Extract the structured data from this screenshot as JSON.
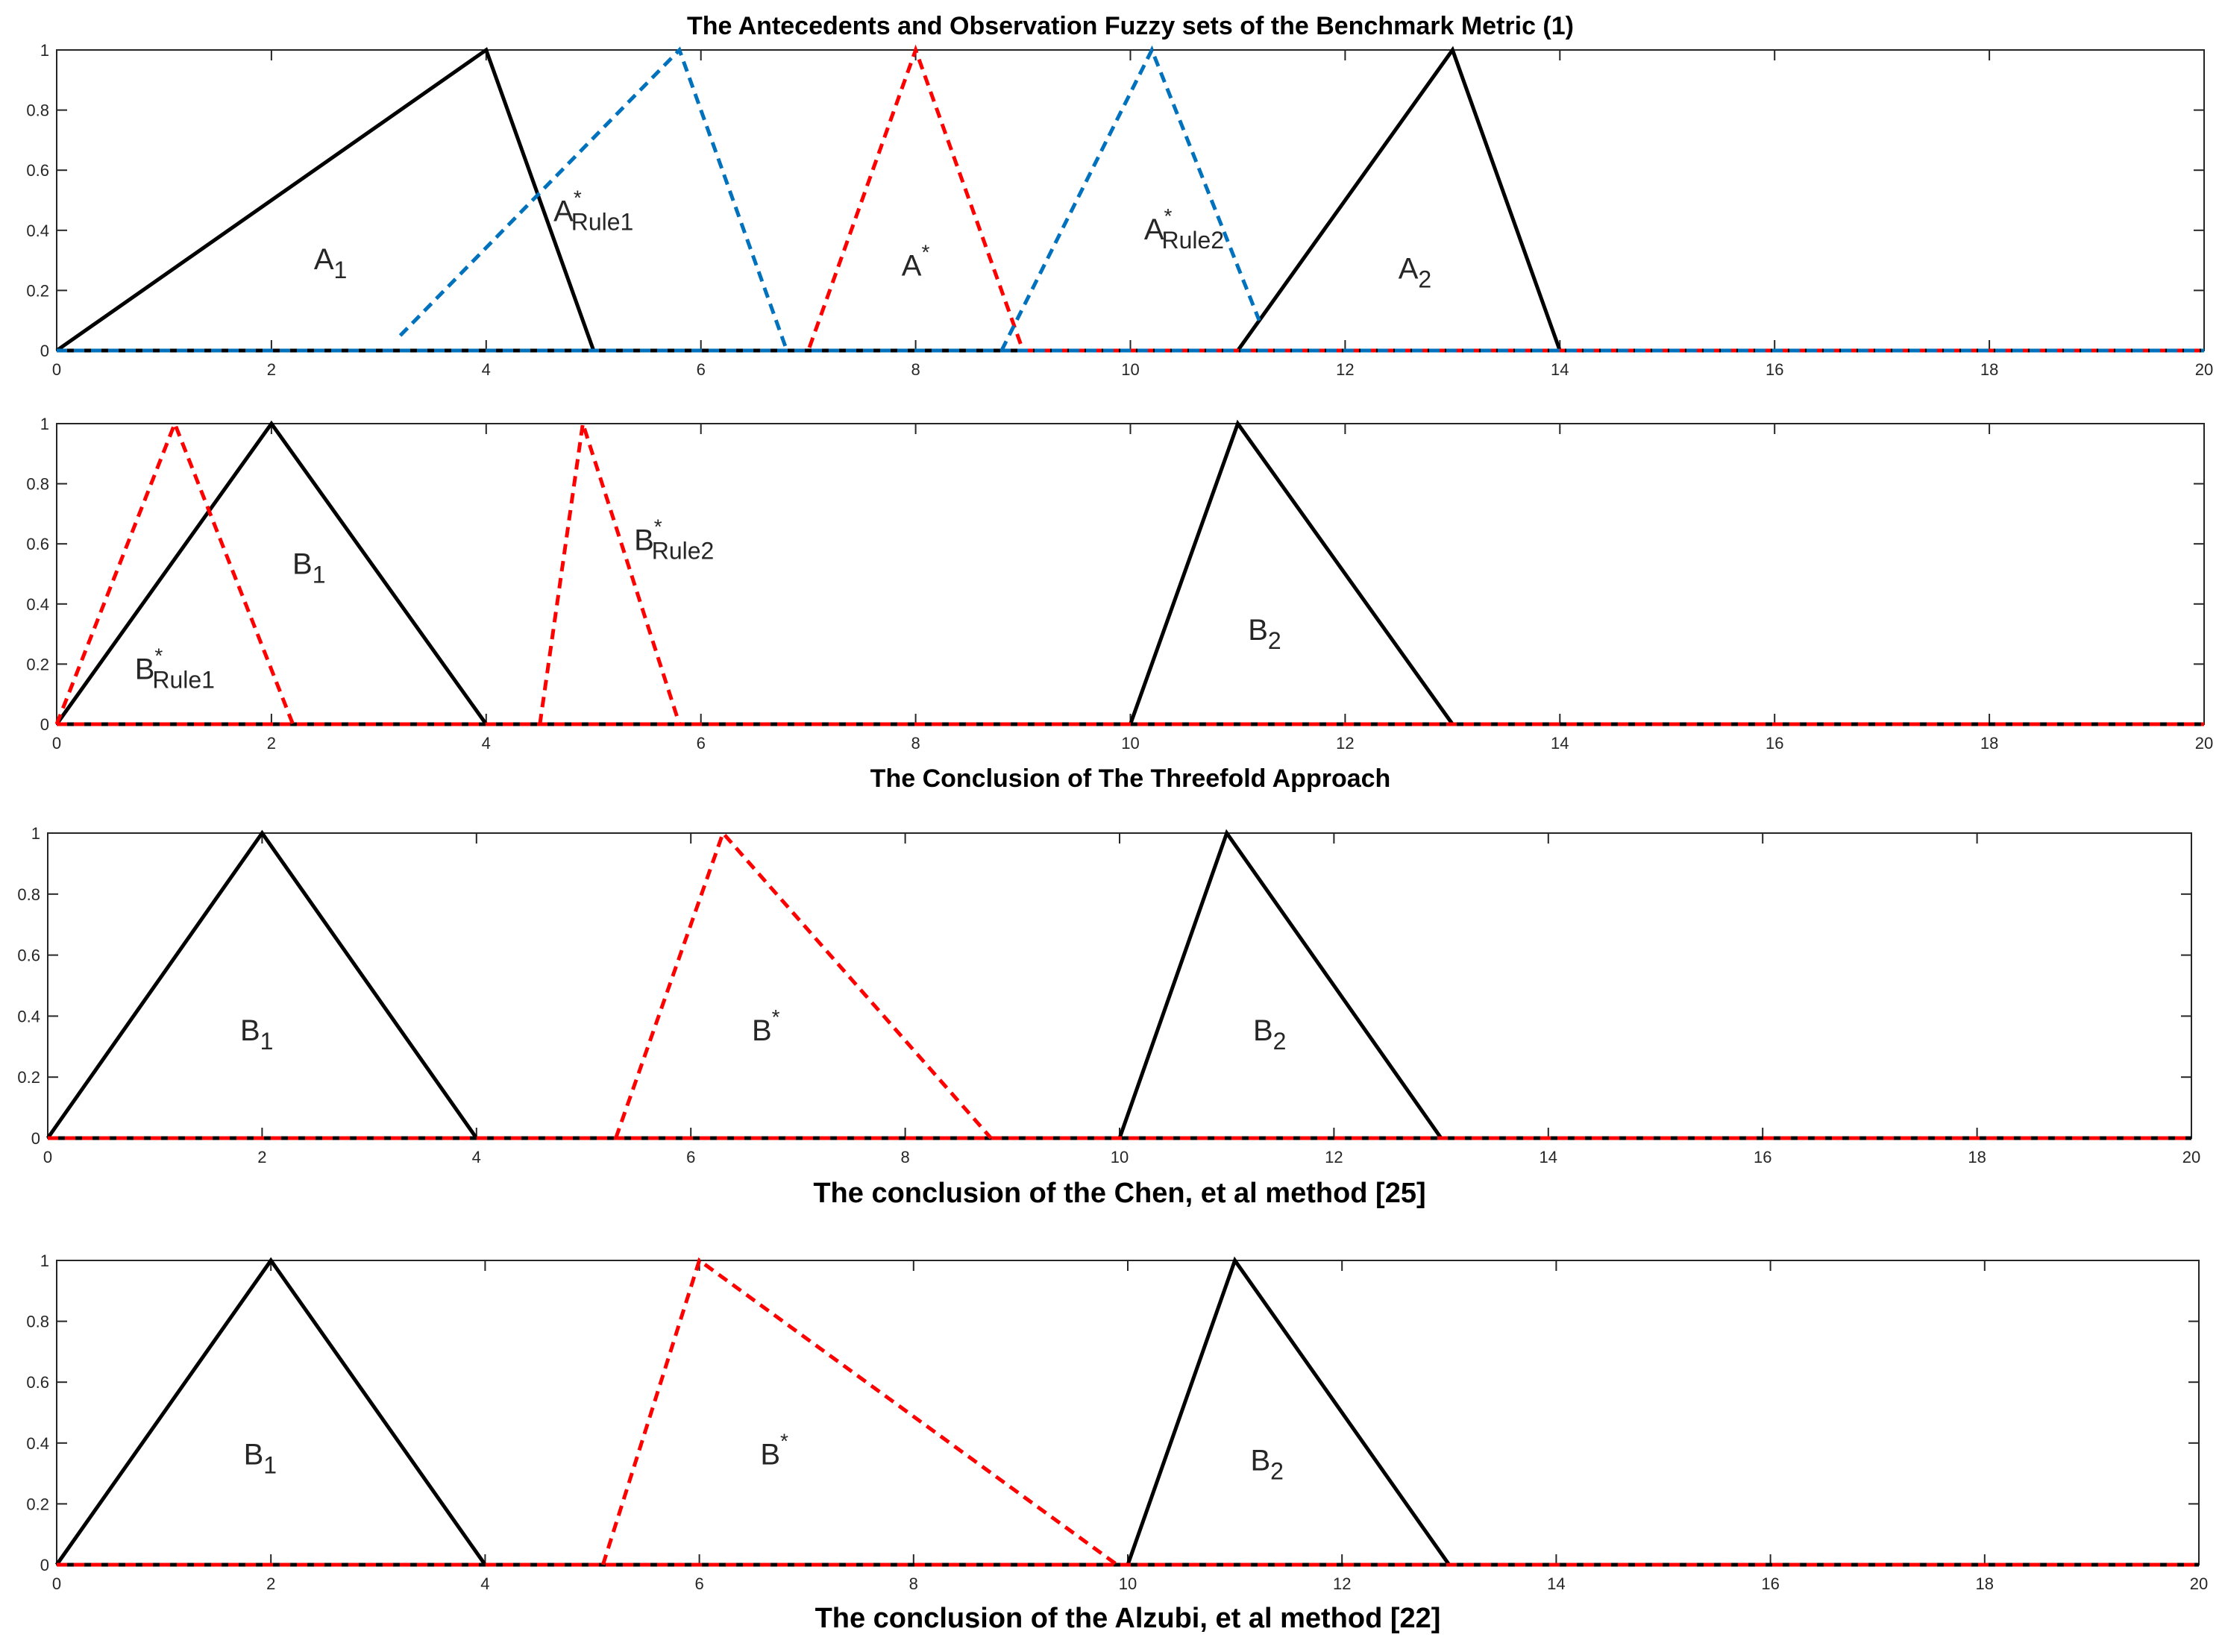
{
  "colors": {
    "black": "#000000",
    "red": "#ff0000",
    "blue": "#0072bd",
    "axis": "#262626",
    "label": "#262626"
  },
  "chart_data": [
    {
      "type": "line",
      "title": "The Antecedents and Observation Fuzzy sets of the Benchmark Metric (1)",
      "xlim": [
        0,
        20
      ],
      "ylim": [
        0,
        1
      ],
      "xticks": [
        0,
        2,
        4,
        6,
        8,
        10,
        12,
        14,
        16,
        18,
        20
      ],
      "yticks": [
        0,
        0.2,
        0.4,
        0.6,
        0.8,
        1
      ],
      "grid": false,
      "series": [
        {
          "color": "black",
          "style": "solid",
          "x": [
            0,
            4,
            5,
            20
          ],
          "y": [
            0,
            1,
            0,
            0
          ]
        },
        {
          "color": "black",
          "style": "solid",
          "x": [
            0,
            11,
            13,
            14,
            20
          ],
          "y": [
            0,
            0,
            1,
            0,
            0
          ]
        },
        {
          "color": "red",
          "style": "dashed",
          "x": [
            0,
            7,
            8,
            9,
            20
          ],
          "y": [
            0,
            0,
            1,
            0,
            0
          ]
        },
        {
          "color": "blue",
          "style": "dashed",
          "x": [
            3.2,
            5.8,
            6.8
          ],
          "y": [
            0.05,
            1,
            0
          ]
        },
        {
          "color": "blue",
          "style": "dashed",
          "x": [
            8.8,
            10.2,
            11.2
          ],
          "y": [
            0,
            1,
            0.1
          ]
        },
        {
          "color": "blue",
          "style": "dashed",
          "x": [
            0,
            20
          ],
          "y": [
            0,
            0
          ]
        }
      ],
      "annotations": [
        {
          "base": "A",
          "sub": "1",
          "sup": "",
          "x": 2.55,
          "y": 0.27,
          "color": "black"
        },
        {
          "base": "A",
          "sub": "Rule1",
          "sup": "*",
          "x": 5.0,
          "y": 0.43,
          "color": "blue"
        },
        {
          "base": "A",
          "sub": "",
          "sup": "*",
          "x": 8.0,
          "y": 0.25,
          "color": "red"
        },
        {
          "base": "A",
          "sub": "Rule2",
          "sup": "*",
          "x": 10.5,
          "y": 0.37,
          "color": "blue"
        },
        {
          "base": "A",
          "sub": "2",
          "sup": "",
          "x": 12.65,
          "y": 0.24,
          "color": "black"
        }
      ]
    },
    {
      "type": "line",
      "title": "The Conclusion of The Threefold Approach",
      "xlim": [
        0,
        20
      ],
      "ylim": [
        0,
        1
      ],
      "xticks": [
        0,
        2,
        4,
        6,
        8,
        10,
        12,
        14,
        16,
        18,
        20
      ],
      "yticks": [
        0,
        0.2,
        0.4,
        0.6,
        0.8,
        1
      ],
      "grid": false,
      "series": [
        {
          "color": "black",
          "style": "solid",
          "x": [
            0,
            2,
            4,
            20
          ],
          "y": [
            0,
            1,
            0,
            0
          ]
        },
        {
          "color": "black",
          "style": "solid",
          "x": [
            0,
            10,
            11,
            13,
            20
          ],
          "y": [
            0,
            0,
            1,
            0,
            0
          ]
        },
        {
          "color": "red",
          "style": "dashed",
          "x": [
            0,
            1.1,
            2.2
          ],
          "y": [
            0,
            1,
            0
          ]
        },
        {
          "color": "red",
          "style": "dashed",
          "x": [
            4.5,
            4.9,
            5.8
          ],
          "y": [
            0,
            1,
            0
          ]
        },
        {
          "color": "red",
          "style": "dashed",
          "x": [
            0,
            20
          ],
          "y": [
            0,
            0
          ]
        }
      ],
      "annotations": [
        {
          "base": "B",
          "sub": "1",
          "sup": "",
          "x": 2.35,
          "y": 0.5,
          "color": "black"
        },
        {
          "base": "B",
          "sub": "Rule1",
          "sup": "*",
          "x": 1.1,
          "y": 0.15,
          "color": "red"
        },
        {
          "base": "B",
          "sub": "Rule2",
          "sup": "*",
          "x": 5.75,
          "y": 0.58,
          "color": "red"
        },
        {
          "base": "B",
          "sub": "2",
          "sup": "",
          "x": 11.25,
          "y": 0.28,
          "color": "black"
        }
      ]
    },
    {
      "type": "line",
      "title": "The conclusion of the Chen, et al method  [25]",
      "xlim": [
        0,
        20
      ],
      "ylim": [
        0,
        1
      ],
      "xticks": [
        0,
        2,
        4,
        6,
        8,
        10,
        12,
        14,
        16,
        18,
        20
      ],
      "yticks": [
        0,
        0.2,
        0.4,
        0.6,
        0.8,
        1
      ],
      "grid": false,
      "series": [
        {
          "color": "black",
          "style": "solid",
          "x": [
            0,
            2,
            4,
            20
          ],
          "y": [
            0,
            1,
            0,
            0
          ]
        },
        {
          "color": "black",
          "style": "solid",
          "x": [
            0,
            10,
            11,
            13,
            20
          ],
          "y": [
            0,
            0,
            1,
            0,
            0
          ]
        },
        {
          "color": "red",
          "style": "dashed",
          "x": [
            5.3,
            6.3,
            8.8
          ],
          "y": [
            0,
            1,
            0
          ]
        },
        {
          "color": "red",
          "style": "dashed",
          "x": [
            0,
            20
          ],
          "y": [
            0,
            0
          ]
        }
      ],
      "annotations": [
        {
          "base": "B",
          "sub": "1",
          "sup": "",
          "x": 1.95,
          "y": 0.32,
          "color": "black"
        },
        {
          "base": "B",
          "sub": "",
          "sup": "*",
          "x": 6.7,
          "y": 0.32,
          "color": "red"
        },
        {
          "base": "B",
          "sub": "2",
          "sup": "",
          "x": 11.4,
          "y": 0.32,
          "color": "black"
        }
      ]
    },
    {
      "type": "line",
      "title": "The conclusion of the Alzubi, et al method  [22]",
      "xlim": [
        0,
        20
      ],
      "ylim": [
        0,
        1
      ],
      "xticks": [
        0,
        2,
        4,
        6,
        8,
        10,
        12,
        14,
        16,
        18,
        20
      ],
      "yticks": [
        0,
        0.2,
        0.4,
        0.6,
        0.8,
        1
      ],
      "grid": false,
      "series": [
        {
          "color": "black",
          "style": "solid",
          "x": [
            0,
            2,
            4,
            20
          ],
          "y": [
            0,
            1,
            0,
            0
          ]
        },
        {
          "color": "black",
          "style": "solid",
          "x": [
            0,
            10,
            11,
            13,
            20
          ],
          "y": [
            0,
            0,
            1,
            0,
            0
          ]
        },
        {
          "color": "red",
          "style": "dashed",
          "x": [
            5.1,
            6.0,
            9.9
          ],
          "y": [
            0,
            1,
            0
          ]
        },
        {
          "color": "red",
          "style": "dashed",
          "x": [
            0,
            20
          ],
          "y": [
            0,
            0
          ]
        }
      ],
      "annotations": [
        {
          "base": "B",
          "sub": "1",
          "sup": "",
          "x": 1.9,
          "y": 0.33,
          "color": "black"
        },
        {
          "base": "B",
          "sub": "",
          "sup": "*",
          "x": 6.7,
          "y": 0.33,
          "color": "red"
        },
        {
          "base": "B",
          "sub": "2",
          "sup": "",
          "x": 11.3,
          "y": 0.31,
          "color": "black"
        }
      ]
    }
  ]
}
